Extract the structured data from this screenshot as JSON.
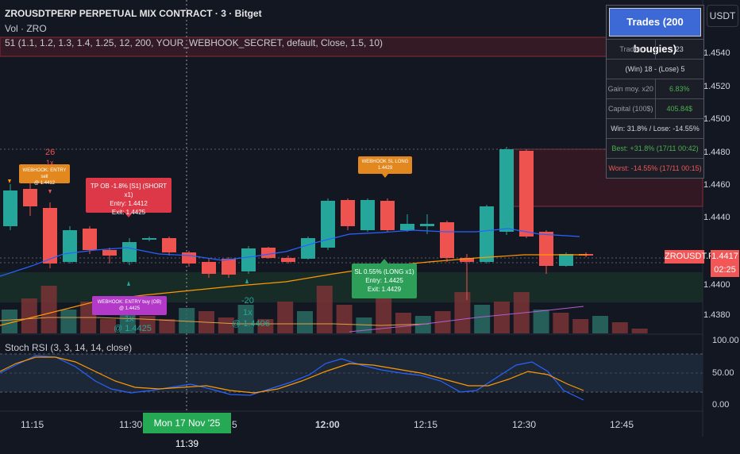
{
  "header": {
    "title": "ZROUSDTPERP PERPETUAL MIX CONTRACT · 3 · Bitget",
    "volume_label": "Vol · ZRO",
    "indicator_params": "51 (1.1, 1.2, 1.3, 1.4, 1.25, 12, 200, YOUR_WEBHOOK_SECRET, default, Close, 1.5, 10)"
  },
  "currency_button": "USDT",
  "price_axis": [
    "1.4540",
    "1.4520",
    "1.4500",
    "1.4480",
    "1.4460",
    "1.4440",
    "1.4400",
    "1.4380"
  ],
  "stoch_axis": [
    "100.00",
    "50.00",
    "0.00"
  ],
  "time_axis": [
    "11:15",
    "11:30",
    "5",
    "12:00",
    "12:15",
    "12:30",
    "12:45"
  ],
  "crosshair_date": "Mon 17 Nov '25   11:39",
  "symbol_tag": "ZROUSDT.P",
  "price_tag": {
    "price": "1.4417",
    "countdown": "02:25"
  },
  "stoch_label": "Stoch RSI (3, 3, 14, 14, close)",
  "trades_table": {
    "title": "Trades (200 bougies)",
    "trades_label": "Trades",
    "trades_value": "23",
    "win_lose": "(Win) 18 - (Lose) 5",
    "gain_label": "Gain moy. x20",
    "gain_value": "6.83%",
    "capital_label": "Capital (100$)",
    "capital_value": "405.84$",
    "win_pct": "Win: 31.8% / Lose: -14.55%",
    "best": "Best: +31.8% (17/11 00:42)",
    "worst": "Worst: -14.55% (17/11 00:15)",
    "colors": {
      "header": "#3d69d7",
      "positive": "#4caf50",
      "negative": "#f25656"
    }
  },
  "labels": {
    "tp_short": [
      "TP OB -1.8% [S1] (SHORT x1)",
      "Entry: 1.4412",
      "Exit: 1.4425"
    ],
    "sl_long": [
      "SL 0.55% (LONG x1)",
      "Entry: 1.4425",
      "Exit: 1.4429"
    ],
    "webhook_sell": [
      "WEBHOOK: ENTRY sell",
      "@ 1.4412"
    ],
    "webhook_sl": [
      "WEBHOOK SL LONG",
      "1.4429"
    ],
    "webhook_buy": [
      "WEBHOOK: ENTRY buy (OB)",
      "@ 1.4425"
    ]
  },
  "annotations": {
    "top_26": "26",
    "top_1x": "1x",
    "bottom_1x_a": "1x",
    "bottom_price_a": "@ 1.4425",
    "bottom_20": "-20",
    "bottom_1x_b": "1x",
    "bottom_price_b": "@ 1.4406"
  },
  "colors": {
    "up": "#26a69a",
    "down": "#ef5350",
    "background": "#131722"
  }
}
